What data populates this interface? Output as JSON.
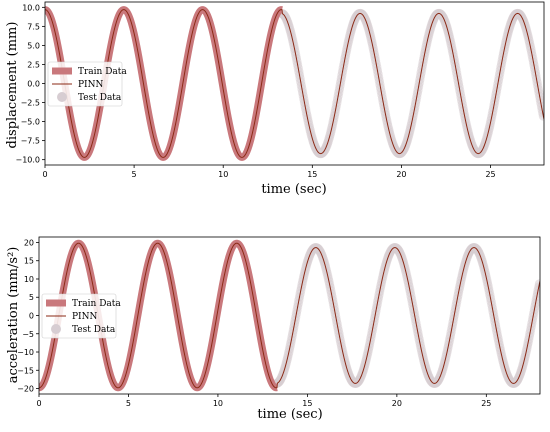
{
  "chart_data": [
    {
      "type": "line",
      "xlabel": "time (sec)",
      "ylabel": "displacement (mm)",
      "xlim": [
        0,
        28
      ],
      "ylim": [
        -10.7,
        10.7
      ],
      "xticks": [
        0,
        5,
        10,
        15,
        20,
        25
      ],
      "xtick_labels": [
        "0",
        "5",
        "10",
        "15",
        "20",
        "25"
      ],
      "yticks": [
        10,
        7.5,
        5,
        2.5,
        0,
        -2.5,
        -5,
        -7.5,
        -10
      ],
      "ytick_labels": [
        "10.0",
        "7.5",
        "5.0",
        "2.5",
        "0.0",
        "−2.5",
        "−5.0",
        "−7.5",
        "−10.0"
      ],
      "legend": [
        {
          "label": "Train Data"
        },
        {
          "label": "PINN"
        },
        {
          "label": "Test Data"
        }
      ],
      "legend_position": "center-left",
      "train_end": 13.3,
      "series": [
        {
          "name": "Train Data",
          "color": "#c9787c",
          "kind": "thick-line",
          "x_range": [
            0,
            13.3
          ]
        },
        {
          "name": "PINN",
          "color": "#8b2a16",
          "kind": "line",
          "x_range": [
            0,
            28
          ]
        },
        {
          "name": "Test Data",
          "color": "#d7cdd2",
          "kind": "markers",
          "x_range": [
            13.3,
            28
          ]
        }
      ],
      "signal": {
        "amplitude": 9.7,
        "period": 4.42,
        "phase": 1.5708,
        "test_amplitude": 9.2
      }
    },
    {
      "type": "line",
      "xlabel": "time (sec)",
      "ylabel": "acceleration (mm/s²)",
      "xlim": [
        0,
        28
      ],
      "ylim": [
        -21.5,
        21.5
      ],
      "xticks": [
        0,
        5,
        10,
        15,
        20,
        25
      ],
      "xtick_labels": [
        "0",
        "5",
        "10",
        "15",
        "20",
        "25"
      ],
      "yticks": [
        20,
        15,
        10,
        5,
        0,
        -5,
        -10,
        -15,
        -20
      ],
      "ytick_labels": [
        "20",
        "15",
        "10",
        "5",
        "0",
        "−5",
        "−10",
        "−15",
        "−20"
      ],
      "legend": [
        {
          "label": "Train Data"
        },
        {
          "label": "PINN"
        },
        {
          "label": "Test Data"
        }
      ],
      "legend_position": "center-left",
      "train_end": 13.3,
      "series": [
        {
          "name": "Train Data",
          "color": "#c9787c",
          "kind": "thick-line",
          "x_range": [
            0,
            13.3
          ]
        },
        {
          "name": "PINN",
          "color": "#8b2a16",
          "kind": "line",
          "x_range": [
            0,
            28
          ]
        },
        {
          "name": "Test Data",
          "color": "#d7cdd2",
          "kind": "markers",
          "x_range": [
            13.3,
            28
          ]
        }
      ],
      "signal": {
        "amplitude": 19.8,
        "period": 4.42,
        "phase": -1.5708,
        "test_amplitude": 18.6
      }
    }
  ]
}
